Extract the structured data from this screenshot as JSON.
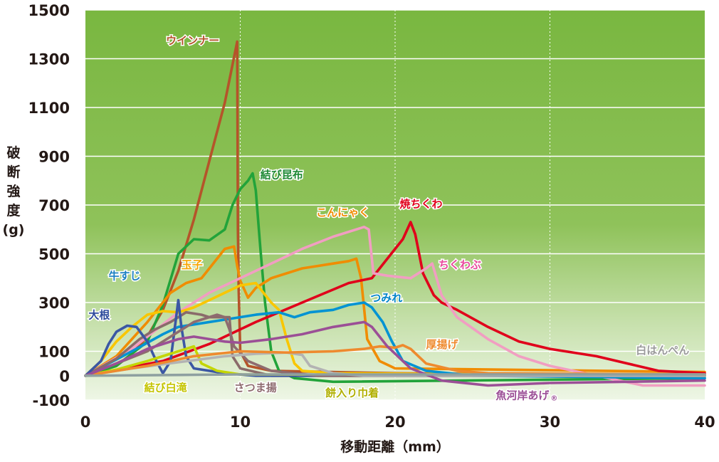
{
  "chart_data": {
    "type": "line",
    "xlabel": "移動距離（mm）",
    "ylabel": [
      "破",
      "断",
      "強",
      "度",
      "(g)"
    ],
    "xlim": [
      0,
      40
    ],
    "ylim": [
      -100,
      1500
    ],
    "x_ticks": [
      "0",
      "10",
      "20",
      "30",
      "40"
    ],
    "y_ticks": [
      {
        "value": 1500,
        "label": "1500"
      },
      {
        "value": 1300,
        "label": "1300"
      },
      {
        "value": 1100,
        "label": "1100"
      },
      {
        "value": 900,
        "label": "900"
      },
      {
        "value": 700,
        "label": "700"
      },
      {
        "value": 500,
        "label": "500"
      },
      {
        "value": 300,
        "label": "300"
      },
      {
        "value": 100,
        "label": "100"
      },
      {
        "value": 0,
        "label": "0"
      },
      {
        "value": -100,
        "label": "-100"
      }
    ],
    "grid_x": [
      10,
      20,
      30
    ],
    "colors": {
      "plot_top": "#79b740",
      "plot_bottom": "#e9f3de",
      "grid": "#ffffff",
      "axis_text": "#231815"
    },
    "series": [
      {
        "name": "ウインナー",
        "color": "#b5542a",
        "label_color": "#b5542a",
        "label_pos": [
          5.2,
          1360
        ],
        "anchor": "start",
        "points": [
          [
            0,
            0
          ],
          [
            2,
            40
          ],
          [
            3,
            90
          ],
          [
            4,
            160
          ],
          [
            5,
            270
          ],
          [
            6,
            430
          ],
          [
            7,
            640
          ],
          [
            8,
            880
          ],
          [
            9,
            1120
          ],
          [
            9.8,
            1370
          ],
          [
            9.85,
            600
          ],
          [
            9.9,
            350
          ],
          [
            10,
            100
          ],
          [
            10.5,
            40
          ],
          [
            12,
            20
          ],
          [
            20,
            10
          ],
          [
            40,
            0
          ]
        ]
      },
      {
        "name": "結び昆布",
        "color": "#22a33a",
        "label_color": "#1f8a35",
        "label_pos": [
          11.3,
          810
        ],
        "anchor": "start",
        "points": [
          [
            0,
            0
          ],
          [
            2,
            40
          ],
          [
            4,
            140
          ],
          [
            5,
            290
          ],
          [
            6,
            500
          ],
          [
            7,
            560
          ],
          [
            8,
            555
          ],
          [
            9,
            600
          ],
          [
            9.5,
            700
          ],
          [
            10,
            765
          ],
          [
            10.5,
            800
          ],
          [
            10.8,
            830
          ],
          [
            11,
            760
          ],
          [
            11.3,
            520
          ],
          [
            11.6,
            300
          ],
          [
            12,
            100
          ],
          [
            12.5,
            20
          ],
          [
            13.5,
            -10
          ],
          [
            16,
            -25
          ],
          [
            40,
            -10
          ]
        ]
      },
      {
        "name": "こんにゃく",
        "color": "#f08c00",
        "label_color": "#f08c00",
        "label_pos": [
          14.9,
          655
        ],
        "anchor": "start",
        "points": [
          [
            0,
            0
          ],
          [
            2,
            80
          ],
          [
            4,
            220
          ],
          [
            5.5,
            340
          ],
          [
            6.5,
            380
          ],
          [
            7.5,
            400
          ],
          [
            8.5,
            480
          ],
          [
            9,
            520
          ],
          [
            9.6,
            530
          ],
          [
            9.8,
            450
          ],
          [
            10,
            390
          ],
          [
            10.5,
            320
          ],
          [
            11,
            360
          ],
          [
            12,
            400
          ],
          [
            13,
            420
          ],
          [
            14,
            440
          ],
          [
            15,
            450
          ],
          [
            16,
            460
          ],
          [
            17,
            470
          ],
          [
            17.5,
            480
          ],
          [
            17.8,
            400
          ],
          [
            18.2,
            150
          ],
          [
            19,
            60
          ],
          [
            20,
            30
          ],
          [
            40,
            15
          ]
        ]
      },
      {
        "name": "焼ちくわ",
        "color": "#e0001b",
        "label_color": "#e0001b",
        "label_pos": [
          20.3,
          690
        ],
        "anchor": "start",
        "points": [
          [
            0,
            0
          ],
          [
            5,
            60
          ],
          [
            8,
            130
          ],
          [
            11,
            220
          ],
          [
            14,
            300
          ],
          [
            17,
            380
          ],
          [
            18.5,
            400
          ],
          [
            19.5,
            480
          ],
          [
            20.5,
            560
          ],
          [
            21,
            630
          ],
          [
            21.3,
            580
          ],
          [
            21.8,
            420
          ],
          [
            22.5,
            330
          ],
          [
            23,
            300
          ],
          [
            24,
            270
          ],
          [
            26,
            200
          ],
          [
            28,
            140
          ],
          [
            30,
            110
          ],
          [
            33,
            80
          ],
          [
            35,
            50
          ],
          [
            37,
            20
          ],
          [
            40,
            10
          ]
        ]
      },
      {
        "name": "ちくわぶ",
        "color": "#f19ec2",
        "label_color": "#e8499b",
        "label_pos": [
          22.8,
          440
        ],
        "anchor": "start",
        "points": [
          [
            0,
            0
          ],
          [
            3,
            110
          ],
          [
            6,
            260
          ],
          [
            8,
            340
          ],
          [
            10,
            400
          ],
          [
            12,
            460
          ],
          [
            14,
            520
          ],
          [
            16,
            570
          ],
          [
            18,
            610
          ],
          [
            18.3,
            600
          ],
          [
            18.6,
            420
          ],
          [
            19.5,
            410
          ],
          [
            21,
            400
          ],
          [
            22,
            440
          ],
          [
            22.4,
            460
          ],
          [
            23,
            330
          ],
          [
            24,
            240
          ],
          [
            26,
            150
          ],
          [
            28,
            80
          ],
          [
            30,
            40
          ],
          [
            33,
            0
          ],
          [
            36,
            -40
          ],
          [
            40,
            -40
          ]
        ]
      },
      {
        "name": "玉子",
        "color": "#f9c600",
        "label_color": "#f5a500",
        "label_pos": [
          6.2,
          440
        ],
        "anchor": "start",
        "points": [
          [
            0,
            0
          ],
          [
            1,
            60
          ],
          [
            2,
            140
          ],
          [
            3,
            200
          ],
          [
            4,
            250
          ],
          [
            5,
            265
          ],
          [
            6,
            260
          ],
          [
            7,
            280
          ],
          [
            8,
            310
          ],
          [
            9,
            340
          ],
          [
            10,
            370
          ],
          [
            11,
            380
          ],
          [
            11.5,
            340
          ],
          [
            12,
            300
          ],
          [
            12.5,
            270
          ],
          [
            13,
            150
          ],
          [
            13.5,
            50
          ],
          [
            14,
            20
          ],
          [
            16,
            10
          ],
          [
            40,
            0
          ]
        ]
      },
      {
        "name": "つみれ",
        "color": "#0093d3",
        "label_color": "#0084c9",
        "label_pos": [
          18.4,
          305
        ],
        "anchor": "start",
        "points": [
          [
            0,
            0
          ],
          [
            3,
            100
          ],
          [
            5,
            170
          ],
          [
            6,
            200
          ],
          [
            7,
            210
          ],
          [
            9,
            230
          ],
          [
            11,
            250
          ],
          [
            12.5,
            260
          ],
          [
            13.5,
            240
          ],
          [
            14.5,
            260
          ],
          [
            16,
            270
          ],
          [
            17,
            290
          ],
          [
            18,
            300
          ],
          [
            18.5,
            280
          ],
          [
            19.2,
            220
          ],
          [
            19.8,
            140
          ],
          [
            20.5,
            60
          ],
          [
            22,
            20
          ],
          [
            25,
            0
          ],
          [
            40,
            -10
          ]
        ]
      },
      {
        "name": "牛すじ",
        "color": "#8a6b6a",
        "label_color": "#1a7fc1",
        "label_pos": [
          1.5,
          395
        ],
        "anchor": "start",
        "points": [
          [
            0,
            0
          ],
          [
            2,
            70
          ],
          [
            3.5,
            150
          ],
          [
            4.5,
            190
          ],
          [
            5.5,
            220
          ],
          [
            6,
            240
          ],
          [
            6.5,
            260
          ],
          [
            7.5,
            250
          ],
          [
            8,
            240
          ],
          [
            9,
            240
          ],
          [
            9.3,
            240
          ],
          [
            9.5,
            80
          ],
          [
            10,
            30
          ],
          [
            12,
            0
          ],
          [
            40,
            0
          ]
        ]
      },
      {
        "name": "大根",
        "color": "#3b57a4",
        "label_color": "#2d4b9b",
        "label_pos": [
          0.2,
          235
        ],
        "anchor": "start",
        "points": [
          [
            0,
            0
          ],
          [
            1,
            60
          ],
          [
            1.5,
            130
          ],
          [
            2,
            180
          ],
          [
            2.7,
            205
          ],
          [
            3.3,
            200
          ],
          [
            4,
            140
          ],
          [
            4.5,
            70
          ],
          [
            5,
            10
          ],
          [
            5.5,
            60
          ],
          [
            6,
            310
          ],
          [
            6.2,
            200
          ],
          [
            6.5,
            80
          ],
          [
            7,
            30
          ],
          [
            9,
            10
          ],
          [
            11,
            0
          ],
          [
            40,
            0
          ]
        ]
      },
      {
        "name": "結び白滝",
        "color": "#c4d600",
        "label_color": "#c4c400",
        "label_pos": [
          3.8,
          -63
        ],
        "anchor": "start",
        "points": [
          [
            0,
            0
          ],
          [
            2,
            25
          ],
          [
            4,
            60
          ],
          [
            5.5,
            90
          ],
          [
            6.5,
            110
          ],
          [
            7,
            120
          ],
          [
            7.5,
            50
          ],
          [
            8.5,
            20
          ],
          [
            10,
            5
          ],
          [
            40,
            0
          ]
        ]
      },
      {
        "name": "さつま揚",
        "color": "#8e6b6f",
        "label_color": "#8e6b6f",
        "label_pos": [
          9.6,
          -63
        ],
        "anchor": "start",
        "points": [
          [
            0,
            0
          ],
          [
            4,
            100
          ],
          [
            7,
            220
          ],
          [
            8.5,
            250
          ],
          [
            9,
            240
          ],
          [
            9.3,
            190
          ],
          [
            9.6,
            120
          ],
          [
            10.5,
            60
          ],
          [
            12,
            20
          ],
          [
            15,
            0
          ],
          [
            40,
            0
          ]
        ]
      },
      {
        "name": "餅入り巾着",
        "color": "#b3b3b3",
        "label_color": "#b0b000",
        "label_pos": [
          15.5,
          -85
        ],
        "anchor": "start",
        "points": [
          [
            0,
            0
          ],
          [
            3,
            30
          ],
          [
            6,
            55
          ],
          [
            9,
            80
          ],
          [
            11,
            90
          ],
          [
            13,
            95
          ],
          [
            14,
            85
          ],
          [
            14.5,
            40
          ],
          [
            16,
            10
          ],
          [
            18,
            0
          ],
          [
            40,
            0
          ]
        ]
      },
      {
        "name": "厚揚げ",
        "color": "#ee8a2e",
        "label_color": "#ee8a2e",
        "label_pos": [
          22,
          113
        ],
        "anchor": "start",
        "points": [
          [
            0,
            0
          ],
          [
            4,
            40
          ],
          [
            7,
            80
          ],
          [
            10,
            100
          ],
          [
            13,
            95
          ],
          [
            16,
            100
          ],
          [
            18,
            110
          ],
          [
            19,
            120
          ],
          [
            20,
            115
          ],
          [
            20.5,
            125
          ],
          [
            21,
            110
          ],
          [
            22,
            50
          ],
          [
            24,
            20
          ],
          [
            26,
            10
          ],
          [
            40,
            5
          ]
        ]
      },
      {
        "name": "魚河岸あげ",
        "color": "#9b4f96",
        "label_color": "#9b4f96",
        "label_pos": [
          26.5,
          -95
        ],
        "anchor": "start",
        "points": [
          [
            0,
            0
          ],
          [
            2,
            50
          ],
          [
            4,
            110
          ],
          [
            6,
            150
          ],
          [
            7,
            160
          ],
          [
            8,
            150
          ],
          [
            9,
            140
          ],
          [
            10,
            135
          ],
          [
            12,
            150
          ],
          [
            14,
            170
          ],
          [
            16,
            200
          ],
          [
            18,
            220
          ],
          [
            18.5,
            200
          ],
          [
            19.5,
            120
          ],
          [
            21,
            30
          ],
          [
            23,
            -20
          ],
          [
            26,
            -40
          ],
          [
            30,
            -30
          ],
          [
            40,
            -20
          ]
        ]
      },
      {
        "name": "白はんぺん",
        "color": "#8ea0a0",
        "label_color": "#9a9a9a",
        "label_pos": [
          39,
          90
        ],
        "anchor": "end",
        "points": [
          [
            0,
            0
          ],
          [
            10,
            5
          ],
          [
            20,
            5
          ],
          [
            30,
            5
          ],
          [
            38,
            5
          ],
          [
            40,
            5
          ]
        ]
      }
    ],
    "annotation_mark": "®"
  }
}
